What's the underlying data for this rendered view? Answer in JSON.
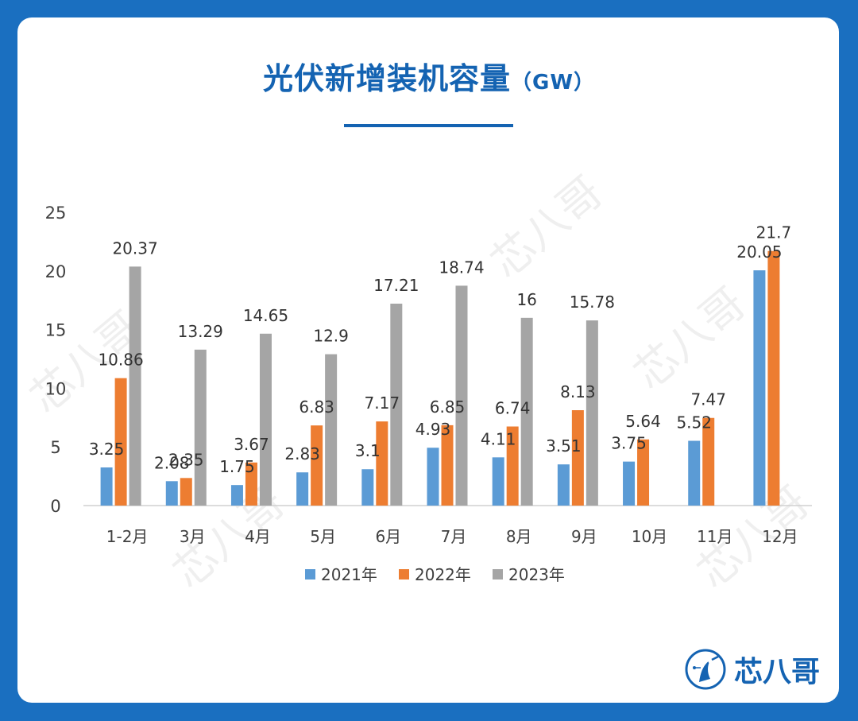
{
  "header": {
    "title": "光伏新增装机容量",
    "unit": "（GW）"
  },
  "brand": {
    "name": "芯八哥",
    "logo_icon": "bird-circle-logo"
  },
  "watermark": "芯八哥",
  "colors": {
    "background": "#1a6fc0",
    "title": "#1463b2",
    "series_2021": "#5b9bd5",
    "series_2022": "#ed7d31",
    "series_2023": "#a5a5a5"
  },
  "chart_data": {
    "type": "bar",
    "title": "光伏新增装机容量（GW）",
    "categories": [
      "1-2月",
      "3月",
      "4月",
      "5月",
      "6月",
      "7月",
      "8月",
      "9月",
      "10月",
      "11月",
      "12月"
    ],
    "series": [
      {
        "name": "2021年",
        "color": "#5b9bd5",
        "values": [
          3.25,
          2.08,
          1.75,
          2.83,
          3.1,
          4.93,
          4.11,
          3.51,
          3.75,
          5.52,
          20.05
        ],
        "labels": [
          "3.25",
          "2.08",
          "1.75",
          "2.83",
          "3.1",
          "4.93",
          "4.11",
          "3.51",
          "3.75",
          "5.52",
          "20.05"
        ]
      },
      {
        "name": "2022年",
        "color": "#ed7d31",
        "values": [
          10.86,
          2.35,
          3.67,
          6.83,
          7.17,
          6.85,
          6.74,
          8.13,
          5.64,
          7.47,
          21.7
        ],
        "labels": [
          "10.86",
          "2.35",
          "3.67",
          "6.83",
          "7.17",
          "6.85",
          "6.74",
          "8.13",
          "5.64",
          "7.47",
          "21.7"
        ]
      },
      {
        "name": "2023年",
        "color": "#a5a5a5",
        "values": [
          20.37,
          13.29,
          14.65,
          12.9,
          17.21,
          18.74,
          16,
          15.78,
          null,
          null,
          null
        ],
        "labels": [
          "20.37",
          "13.29",
          "14.65",
          "12.9",
          "17.21",
          "18.74",
          "16",
          "15.78",
          "",
          "",
          ""
        ]
      }
    ],
    "y_ticks": [
      "0",
      "5",
      "10",
      "15",
      "20",
      "25"
    ],
    "ylim": [
      0,
      25
    ],
    "xlabel": "",
    "ylabel": "",
    "grid": false,
    "legend_position": "bottom"
  }
}
